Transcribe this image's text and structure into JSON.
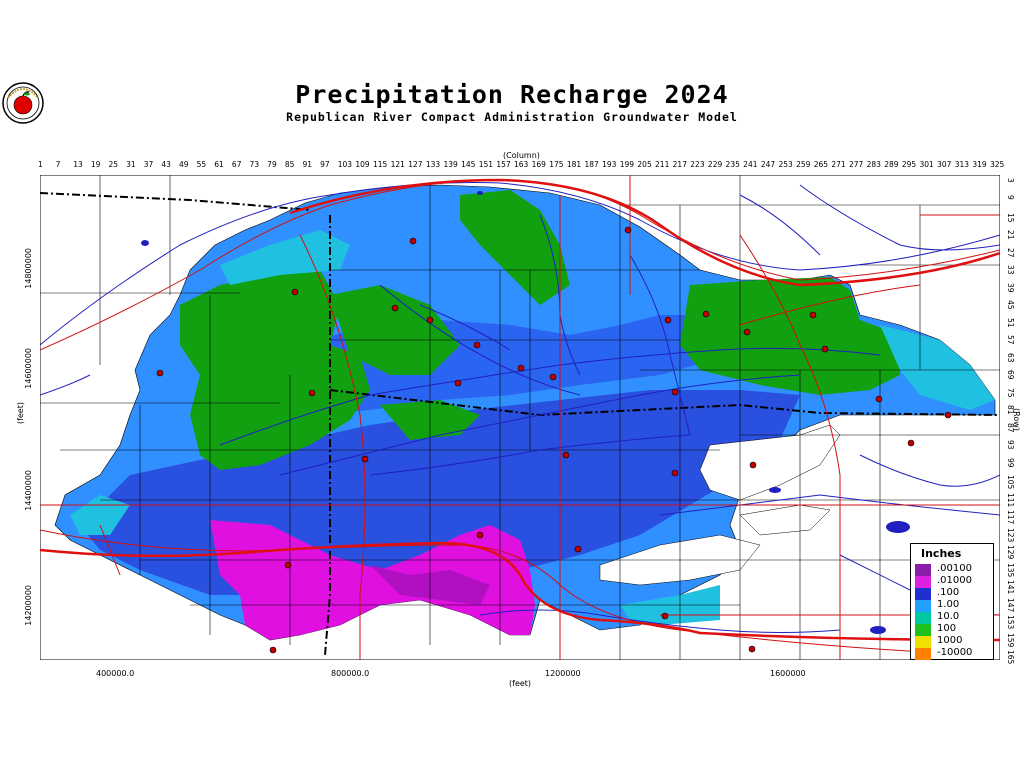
{
  "title": "Precipitation Recharge 2024",
  "subtitle": "Republican River Compact Administration Groundwater Model",
  "column_axis": {
    "label": "(Column)",
    "ticks": [
      "1",
      "7",
      "13",
      "19",
      "25",
      "31",
      "37",
      "43",
      "49",
      "55",
      "61",
      "67",
      "73",
      "79",
      "85",
      "91",
      "97",
      "103",
      "109",
      "115",
      "121",
      "127",
      "133",
      "139",
      "145",
      "151",
      "157",
      "163",
      "169",
      "175",
      "181",
      "187",
      "193",
      "199",
      "205",
      "211",
      "217",
      "223",
      "229",
      "235",
      "241",
      "247",
      "253",
      "259",
      "265",
      "271",
      "277",
      "283",
      "289",
      "295",
      "301",
      "307",
      "313",
      "319",
      "325"
    ]
  },
  "row_axis": {
    "label": "(Row)",
    "ticks": [
      "3",
      "9",
      "15",
      "21",
      "27",
      "33",
      "39",
      "45",
      "51",
      "57",
      "63",
      "69",
      "75",
      "81",
      "87",
      "93",
      "99",
      "105",
      "111",
      "117",
      "123",
      "129",
      "135",
      "141",
      "147",
      "153",
      "159",
      "165"
    ]
  },
  "x_axis": {
    "label": "(feet)",
    "ticks": [
      "400000.0",
      "800000.0",
      "1200000",
      "1600000"
    ]
  },
  "y_axis": {
    "label": "(feet)",
    "ticks": [
      "14800000",
      "14600000",
      "14400000",
      "14200000"
    ]
  },
  "legend": {
    "title": "Inches",
    "entries": [
      {
        "label": ".00100",
        "color": "#8a1ea8"
      },
      {
        "label": ".01000",
        "color": "#e020e0"
      },
      {
        "label": ".100",
        "color": "#2030d0"
      },
      {
        "label": "1.00",
        "color": "#20a0ff"
      },
      {
        "label": "10.0",
        "color": "#00c8a0"
      },
      {
        "label": "100",
        "color": "#20c020"
      },
      {
        "label": "1000",
        "color": "#f0e000"
      },
      {
        "label": "-10000",
        "color": "#ff8000"
      }
    ]
  },
  "colors": {
    "green": "#10a010",
    "light_green": "#30c030",
    "cyan": "#20c0e0",
    "light_blue": "#3090ff",
    "blue": "#2040d8",
    "magenta": "#e010e0",
    "river": "#2020c0",
    "road": "#d01010"
  }
}
